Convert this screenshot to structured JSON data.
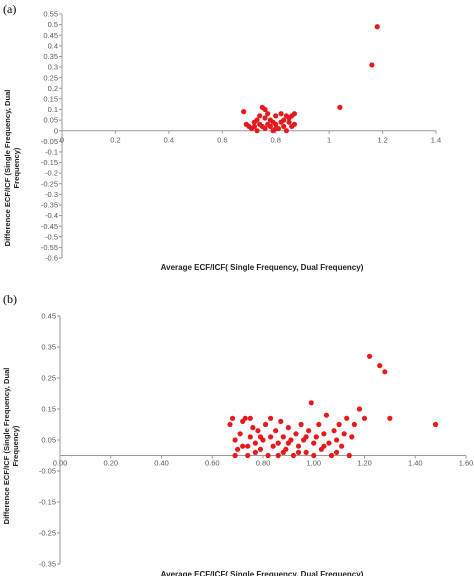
{
  "chart_data": [
    {
      "panel_label": "(a)",
      "type": "scatter",
      "xlabel": "Average ECF/ICF( Single Frequency, Dual Frequency)",
      "ylabel": [
        "Difference  ECF/ICF (Single Frequency,  Dual",
        "Frequency)"
      ],
      "xlim": [
        0,
        1.4
      ],
      "ylim": [
        -0.6,
        0.55
      ],
      "x_ticks": [
        "0",
        "0.2",
        "0.4",
        "0.6",
        "0.8",
        "1",
        "1.2",
        "1.4"
      ],
      "x_tick_values": [
        0,
        0.2,
        0.4,
        0.6,
        0.8,
        1.0,
        1.2,
        1.4
      ],
      "y_ticks": [
        "0.55",
        "0.5",
        "0.45",
        "0.4",
        "0.35",
        "0.3",
        "0.25",
        "0.2",
        "0.15",
        "0.1",
        "0.05",
        "0",
        "-0.05",
        "-0.1",
        "-0.15",
        "-0.2",
        "-0.25",
        "-0.3",
        "-0.35",
        "-0.4",
        "-0.45",
        "-0.5",
        "-0.55",
        "-0.6"
      ],
      "y_tick_values": [
        0.55,
        0.5,
        0.45,
        0.4,
        0.35,
        0.3,
        0.25,
        0.2,
        0.15,
        0.1,
        0.05,
        0,
        -0.05,
        -0.1,
        -0.15,
        -0.2,
        -0.25,
        -0.3,
        -0.35,
        -0.4,
        -0.45,
        -0.5,
        -0.55,
        -0.6
      ],
      "grid": false,
      "marker_color": "#e8191c",
      "points": [
        [
          0.68,
          0.09
        ],
        [
          0.69,
          0.03
        ],
        [
          0.7,
          0.02
        ],
        [
          0.71,
          0.01
        ],
        [
          0.72,
          0.04
        ],
        [
          0.72,
          0.02
        ],
        [
          0.73,
          0.0
        ],
        [
          0.73,
          0.05
        ],
        [
          0.74,
          0.03
        ],
        [
          0.75,
          0.11
        ],
        [
          0.75,
          0.02
        ],
        [
          0.76,
          0.06
        ],
        [
          0.76,
          0.01
        ],
        [
          0.77,
          0.03
        ],
        [
          0.77,
          0.08
        ],
        [
          0.78,
          0.02
        ],
        [
          0.78,
          0.05
        ],
        [
          0.79,
          0.0
        ],
        [
          0.79,
          0.04
        ],
        [
          0.8,
          0.03
        ],
        [
          0.8,
          0.07
        ],
        [
          0.81,
          0.01
        ],
        [
          0.82,
          0.04
        ],
        [
          0.82,
          0.08
        ],
        [
          0.83,
          0.02
        ],
        [
          0.83,
          0.05
        ],
        [
          0.84,
          0.07
        ],
        [
          0.84,
          0.0
        ],
        [
          0.85,
          0.04
        ],
        [
          0.85,
          0.06
        ],
        [
          0.86,
          0.02
        ],
        [
          0.86,
          0.07
        ],
        [
          0.87,
          0.03
        ],
        [
          0.87,
          0.08
        ],
        [
          0.74,
          0.07
        ],
        [
          0.76,
          0.1
        ],
        [
          0.8,
          0.01
        ],
        [
          1.04,
          0.11
        ],
        [
          1.16,
          0.31
        ],
        [
          1.18,
          0.49
        ]
      ]
    },
    {
      "panel_label": "(b)",
      "type": "scatter",
      "xlabel": "Average ECF/ICF( Single Frequency, Dual Frequency)",
      "ylabel": [
        "Difference  ECF/ICF (Single Frequency,  Dual",
        "Frequency)"
      ],
      "xlim": [
        0,
        1.6
      ],
      "ylim": [
        -0.35,
        0.45
      ],
      "x_ticks": [
        "0.00",
        "0.20",
        "0.40",
        "0.60",
        "0.80",
        "1.00",
        "1.20",
        "1.40",
        "1.60"
      ],
      "x_tick_values": [
        0,
        0.2,
        0.4,
        0.6,
        0.8,
        1.0,
        1.2,
        1.4,
        1.6
      ],
      "y_ticks": [
        "0.45",
        "0.35",
        "0.25",
        "0.15",
        "0.05",
        "-0.05",
        "-0.15",
        "-0.25",
        "-0.35"
      ],
      "y_tick_values": [
        0.45,
        0.35,
        0.25,
        0.15,
        0.05,
        -0.05,
        -0.15,
        -0.25,
        -0.35
      ],
      "grid": false,
      "marker_color": "#e8191c",
      "points": [
        [
          0.67,
          0.1
        ],
        [
          0.68,
          0.12
        ],
        [
          0.69,
          0.05
        ],
        [
          0.7,
          0.02
        ],
        [
          0.71,
          0.07
        ],
        [
          0.72,
          0.11
        ],
        [
          0.73,
          0.12
        ],
        [
          0.74,
          0.03
        ],
        [
          0.74,
          0.0
        ],
        [
          0.75,
          0.06
        ],
        [
          0.76,
          0.09
        ],
        [
          0.77,
          0.04
        ],
        [
          0.77,
          0.01
        ],
        [
          0.78,
          0.08
        ],
        [
          0.79,
          0.02
        ],
        [
          0.8,
          0.05
        ],
        [
          0.81,
          0.1
        ],
        [
          0.82,
          0.0
        ],
        [
          0.83,
          0.06
        ],
        [
          0.84,
          0.03
        ],
        [
          0.85,
          0.08
        ],
        [
          0.86,
          0.04
        ],
        [
          0.87,
          0.11
        ],
        [
          0.88,
          0.01
        ],
        [
          0.88,
          0.06
        ],
        [
          0.89,
          0.02
        ],
        [
          0.9,
          0.09
        ],
        [
          0.91,
          0.05
        ],
        [
          0.92,
          0.0
        ],
        [
          0.93,
          0.07
        ],
        [
          0.94,
          0.03
        ],
        [
          0.95,
          0.1
        ],
        [
          0.96,
          0.05
        ],
        [
          0.97,
          0.01
        ],
        [
          0.98,
          0.08
        ],
        [
          0.99,
          0.17
        ],
        [
          1.0,
          0.04
        ],
        [
          1.01,
          0.06
        ],
        [
          1.02,
          0.1
        ],
        [
          1.03,
          0.02
        ],
        [
          1.04,
          0.07
        ],
        [
          1.05,
          0.13
        ],
        [
          1.06,
          0.04
        ],
        [
          1.07,
          0.0
        ],
        [
          1.08,
          0.08
        ],
        [
          1.09,
          0.05
        ],
        [
          1.1,
          0.1
        ],
        [
          1.11,
          0.03
        ],
        [
          1.12,
          0.07
        ],
        [
          1.13,
          0.12
        ],
        [
          1.14,
          0.0
        ],
        [
          1.15,
          0.06
        ],
        [
          1.16,
          0.1
        ],
        [
          1.18,
          0.15
        ],
        [
          1.2,
          0.12
        ],
        [
          1.22,
          0.32
        ],
        [
          1.26,
          0.29
        ],
        [
          1.28,
          0.27
        ],
        [
          1.3,
          0.12
        ],
        [
          1.48,
          0.1
        ],
        [
          0.69,
          0.0
        ],
        [
          0.72,
          0.03
        ],
        [
          0.75,
          0.12
        ],
        [
          0.79,
          0.06
        ],
        [
          0.83,
          0.12
        ],
        [
          0.86,
          0.0
        ],
        [
          0.9,
          0.04
        ],
        [
          0.94,
          0.01
        ],
        [
          0.97,
          0.06
        ],
        [
          1.0,
          0.0
        ],
        [
          1.04,
          0.03
        ],
        [
          1.09,
          0.01
        ]
      ]
    }
  ]
}
